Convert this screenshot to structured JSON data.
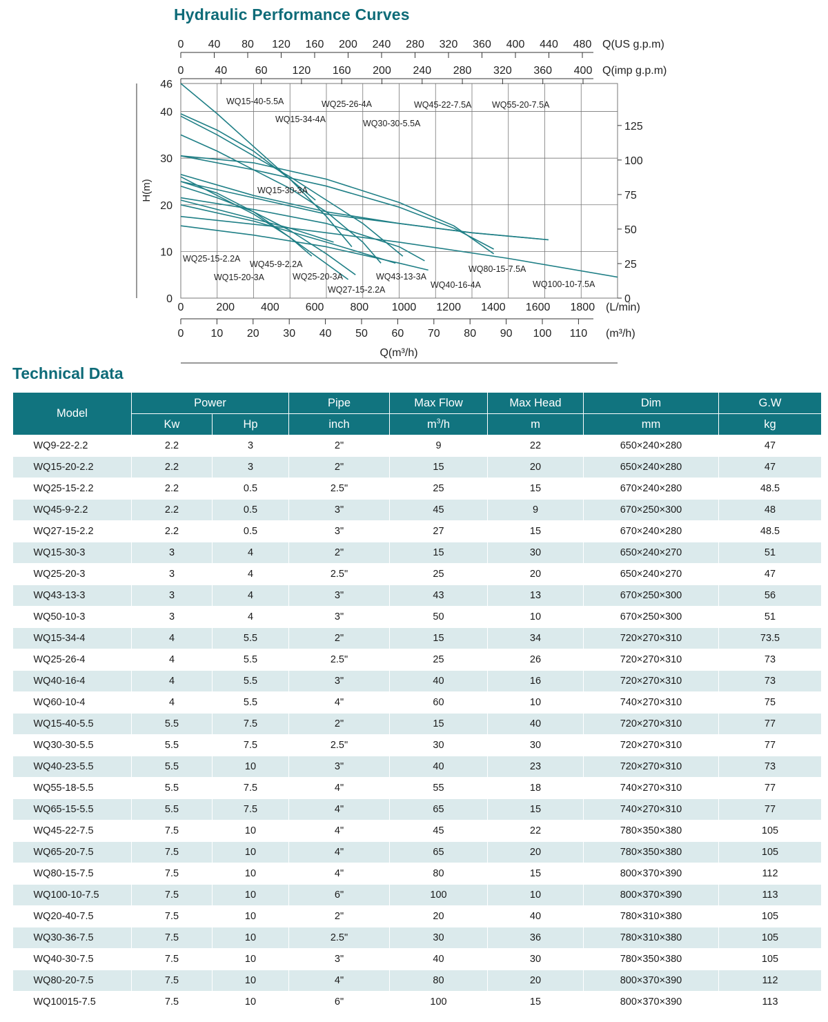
{
  "chart_title": "Hydraulic Performance Curves",
  "section_title": "Technical Data",
  "chart_data": {
    "type": "line",
    "title": "Hydraulic Performance Curves",
    "xlabel": "Q(m³/h)",
    "ylabel": "H(m)",
    "xlim": [
      0,
      120
    ],
    "ylim": [
      0,
      46
    ],
    "grid": true,
    "left_ticks": [
      0,
      10,
      20,
      30,
      40,
      46
    ],
    "right_ticks": [
      "0",
      "25",
      "50",
      "75",
      "100",
      "125"
    ],
    "lmin_ticks": [
      "0",
      "200",
      "400",
      "600",
      "800",
      "1000",
      "1200",
      "1400",
      "1600",
      "1800",
      "(L/min)"
    ],
    "m3h_ticks": [
      "0",
      "10",
      "20",
      "30",
      "40",
      "50",
      "60",
      "70",
      "80",
      "90",
      "100",
      "110",
      "(m³/h)"
    ],
    "usgpm_ticks": [
      "0",
      "40",
      "80",
      "120",
      "160",
      "200",
      "240",
      "280",
      "320",
      "360",
      "400",
      "440",
      "480",
      "Q(US g.p.m)"
    ],
    "impgpm_ticks": [
      "0",
      "40",
      "60",
      "120",
      "160",
      "200",
      "240",
      "280",
      "320",
      "360",
      "400",
      "Q(imp g.p.m)"
    ],
    "series": [
      {
        "name": "WQ15-40-5.5A",
        "x": [
          0,
          10,
          20,
          30,
          37
        ],
        "y": [
          46,
          39.5,
          32.5,
          25.5,
          21
        ]
      },
      {
        "name": "WQ15-34-4A",
        "x": [
          0,
          10,
          20,
          30,
          40,
          47
        ],
        "y": [
          39.5,
          36,
          31.5,
          25.5,
          17.5,
          11
        ]
      },
      {
        "name": "WQ25-26-4A",
        "x": [
          0,
          10,
          20,
          30,
          40,
          50,
          55
        ],
        "y": [
          35,
          31.5,
          27.5,
          23.5,
          18.5,
          12,
          7.5
        ]
      },
      {
        "name": "WQ30-30-5.5A",
        "x": [
          0,
          10,
          20,
          30,
          40,
          50,
          61
        ],
        "y": [
          39,
          35,
          30.5,
          26,
          21,
          16,
          9
        ]
      },
      {
        "name": "WQ45-22-7.5A",
        "x": [
          0,
          20,
          40,
          60,
          75,
          86
        ],
        "y": [
          30.5,
          29,
          25.5,
          20.5,
          15.5,
          9.5
        ]
      },
      {
        "name": "WQ55-20-7.5A",
        "x": [
          0,
          20,
          40,
          60,
          75,
          86
        ],
        "y": [
          30.5,
          27.5,
          24,
          19.5,
          15,
          10.5
        ]
      },
      {
        "name": "WQ15-30-3A",
        "x": [
          0,
          10,
          20,
          30,
          36
        ],
        "y": [
          25,
          22.5,
          18.5,
          13,
          9
        ]
      },
      {
        "name": "WQ25-15-2.2A",
        "x": [
          0,
          10,
          20,
          30,
          42
        ],
        "y": [
          21,
          19,
          17,
          15,
          12
        ]
      },
      {
        "name": "WQ45-9-2.2A",
        "x": [
          0,
          20,
          40,
          60,
          68
        ],
        "y": [
          15.5,
          13.5,
          11,
          7.5,
          6
        ]
      },
      {
        "name": "WQ15-20-3A",
        "x": [
          0,
          10,
          20,
          30,
          46
        ],
        "y": [
          26,
          22,
          18,
          13,
          4
        ]
      },
      {
        "name": "WQ25-20-3A",
        "x": [
          0,
          10,
          20,
          30,
          40,
          48
        ],
        "y": [
          24,
          21.5,
          18.5,
          14.5,
          9.5,
          5
        ]
      },
      {
        "name": "WQ27-15-2.2A",
        "x": [
          0,
          20,
          40,
          59
        ],
        "y": [
          20,
          16.5,
          12,
          7.5
        ]
      },
      {
        "name": "WQ43-13-3A",
        "x": [
          0,
          20,
          40,
          60,
          67
        ],
        "y": [
          21.5,
          19,
          16,
          11,
          8
        ]
      },
      {
        "name": "WQ40-16-4A",
        "x": [
          0,
          20,
          40,
          60,
          80,
          101
        ],
        "y": [
          25,
          21.5,
          18,
          16,
          14,
          12.5
        ]
      },
      {
        "name": "WQ80-15-7.5A",
        "x": [
          0,
          20,
          40,
          60,
          80,
          101
        ],
        "y": [
          26.5,
          22,
          18.5,
          16,
          14,
          12.5
        ]
      },
      {
        "name": "WQ100-10-7.5A",
        "x": [
          0,
          30,
          60,
          90,
          120
        ],
        "y": [
          17.5,
          15,
          12,
          8.5,
          4.5
        ]
      }
    ],
    "curve_labels": [
      "WQ15-40-5.5A",
      "WQ15-34-4A",
      "WQ25-26-4A",
      "WQ30-30-5.5A",
      "WQ45-22-7.5A",
      "WQ55-20-7.5A",
      "WQ15-30-3A",
      "WQ25-15-2.2A",
      "WQ45-9-2.2A",
      "WQ15-20-3A",
      "WQ25-20-3A",
      "WQ27-15-2.2A",
      "WQ43-13-3A",
      "WQ40-16-4A",
      "WQ80-15-7.5A",
      "WQ100-10-7.5A"
    ],
    "colors": {
      "curve": "#1f7f86",
      "grid": "#777777",
      "accent": "#0e6b78"
    }
  },
  "table": {
    "headers": {
      "model": "Model",
      "power": "Power",
      "pipe": "Pipe",
      "max_flow": "Max  Flow",
      "max_head": "Max  Head",
      "dim": "Dim",
      "gw": "G.W",
      "kw": "Kw",
      "hp": "Hp",
      "inch": "inch",
      "flow_unit": "m",
      "flow_unit_sup": "3",
      "flow_unit_tail": "/h",
      "m": "m",
      "mm": "mm",
      "kg": "kg"
    },
    "rows": [
      [
        "WQ9-22-2.2",
        "2.2",
        "3",
        "2\"",
        "9",
        "22",
        "650×240×280",
        "47"
      ],
      [
        "WQ15-20-2.2",
        "2.2",
        "3",
        "2\"",
        "15",
        "20",
        "650×240×280",
        "47"
      ],
      [
        "WQ25-15-2.2",
        "2.2",
        "0.5",
        "2.5\"",
        "25",
        "15",
        "670×240×280",
        "48.5"
      ],
      [
        "WQ45-9-2.2",
        "2.2",
        "0.5",
        "3\"",
        "45",
        "9",
        "670×250×300",
        "48"
      ],
      [
        "WQ27-15-2.2",
        "2.2",
        "0.5",
        "3\"",
        "27",
        "15",
        "670×240×280",
        "48.5"
      ],
      [
        "WQ15-30-3",
        "3",
        "4",
        "2\"",
        "15",
        "30",
        "650×240×270",
        "51"
      ],
      [
        "WQ25-20-3",
        "3",
        "4",
        "2.5\"",
        "25",
        "20",
        "650×240×270",
        "47"
      ],
      [
        "WQ43-13-3",
        "3",
        "4",
        "3\"",
        "43",
        "13",
        "670×250×300",
        "56"
      ],
      [
        "WQ50-10-3",
        "3",
        "4",
        "3\"",
        "50",
        "10",
        "670×250×300",
        "51"
      ],
      [
        "WQ15-34-4",
        "4",
        "5.5",
        "2\"",
        "15",
        "34",
        "720×270×310",
        "73.5"
      ],
      [
        "WQ25-26-4",
        "4",
        "5.5",
        "2.5\"",
        "25",
        "26",
        "720×270×310",
        "73"
      ],
      [
        "WQ40-16-4",
        "4",
        "5.5",
        "3\"",
        "40",
        "16",
        "720×270×310",
        "73"
      ],
      [
        "WQ60-10-4",
        "4",
        "5.5",
        "4\"",
        "60",
        "10",
        "740×270×310",
        "75"
      ],
      [
        "WQ15-40-5.5",
        "5.5",
        "7.5",
        "2\"",
        "15",
        "40",
        "720×270×310",
        "77"
      ],
      [
        "WQ30-30-5.5",
        "5.5",
        "7.5",
        "2.5\"",
        "30",
        "30",
        "720×270×310",
        "77"
      ],
      [
        "WQ40-23-5.5",
        "5.5",
        "10",
        "3\"",
        "40",
        "23",
        "720×270×310",
        "73"
      ],
      [
        "WQ55-18-5.5",
        "5.5",
        "7.5",
        "4\"",
        "55",
        "18",
        "740×270×310",
        "77"
      ],
      [
        "WQ65-15-5.5",
        "5.5",
        "7.5",
        "4\"",
        "65",
        "15",
        "740×270×310",
        "77"
      ],
      [
        "WQ45-22-7.5",
        "7.5",
        "10",
        "4\"",
        "45",
        "22",
        "780×350×380",
        "105"
      ],
      [
        "WQ65-20-7.5",
        "7.5",
        "10",
        "4\"",
        "65",
        "20",
        "780×350×380",
        "105"
      ],
      [
        "WQ80-15-7.5",
        "7.5",
        "10",
        "4\"",
        "80",
        "15",
        "800×370×390",
        "112"
      ],
      [
        "WQ100-10-7.5",
        "7.5",
        "10",
        "6\"",
        "100",
        "10",
        "800×370×390",
        "113"
      ],
      [
        "WQ20-40-7.5",
        "7.5",
        "10",
        "2\"",
        "20",
        "40",
        "780×310×380",
        "105"
      ],
      [
        "WQ30-36-7.5",
        "7.5",
        "10",
        "2.5\"",
        "30",
        "36",
        "780×310×380",
        "105"
      ],
      [
        "WQ40-30-7.5",
        "7.5",
        "10",
        "3\"",
        "40",
        "30",
        "780×350×380",
        "105"
      ],
      [
        "WQ80-20-7.5",
        "7.5",
        "10",
        "4\"",
        "80",
        "20",
        "800×370×390",
        "112"
      ],
      [
        "WQ10015-7.5",
        "7.5",
        "10",
        "6\"",
        "100",
        "15",
        "800×370×390",
        "113"
      ]
    ]
  }
}
